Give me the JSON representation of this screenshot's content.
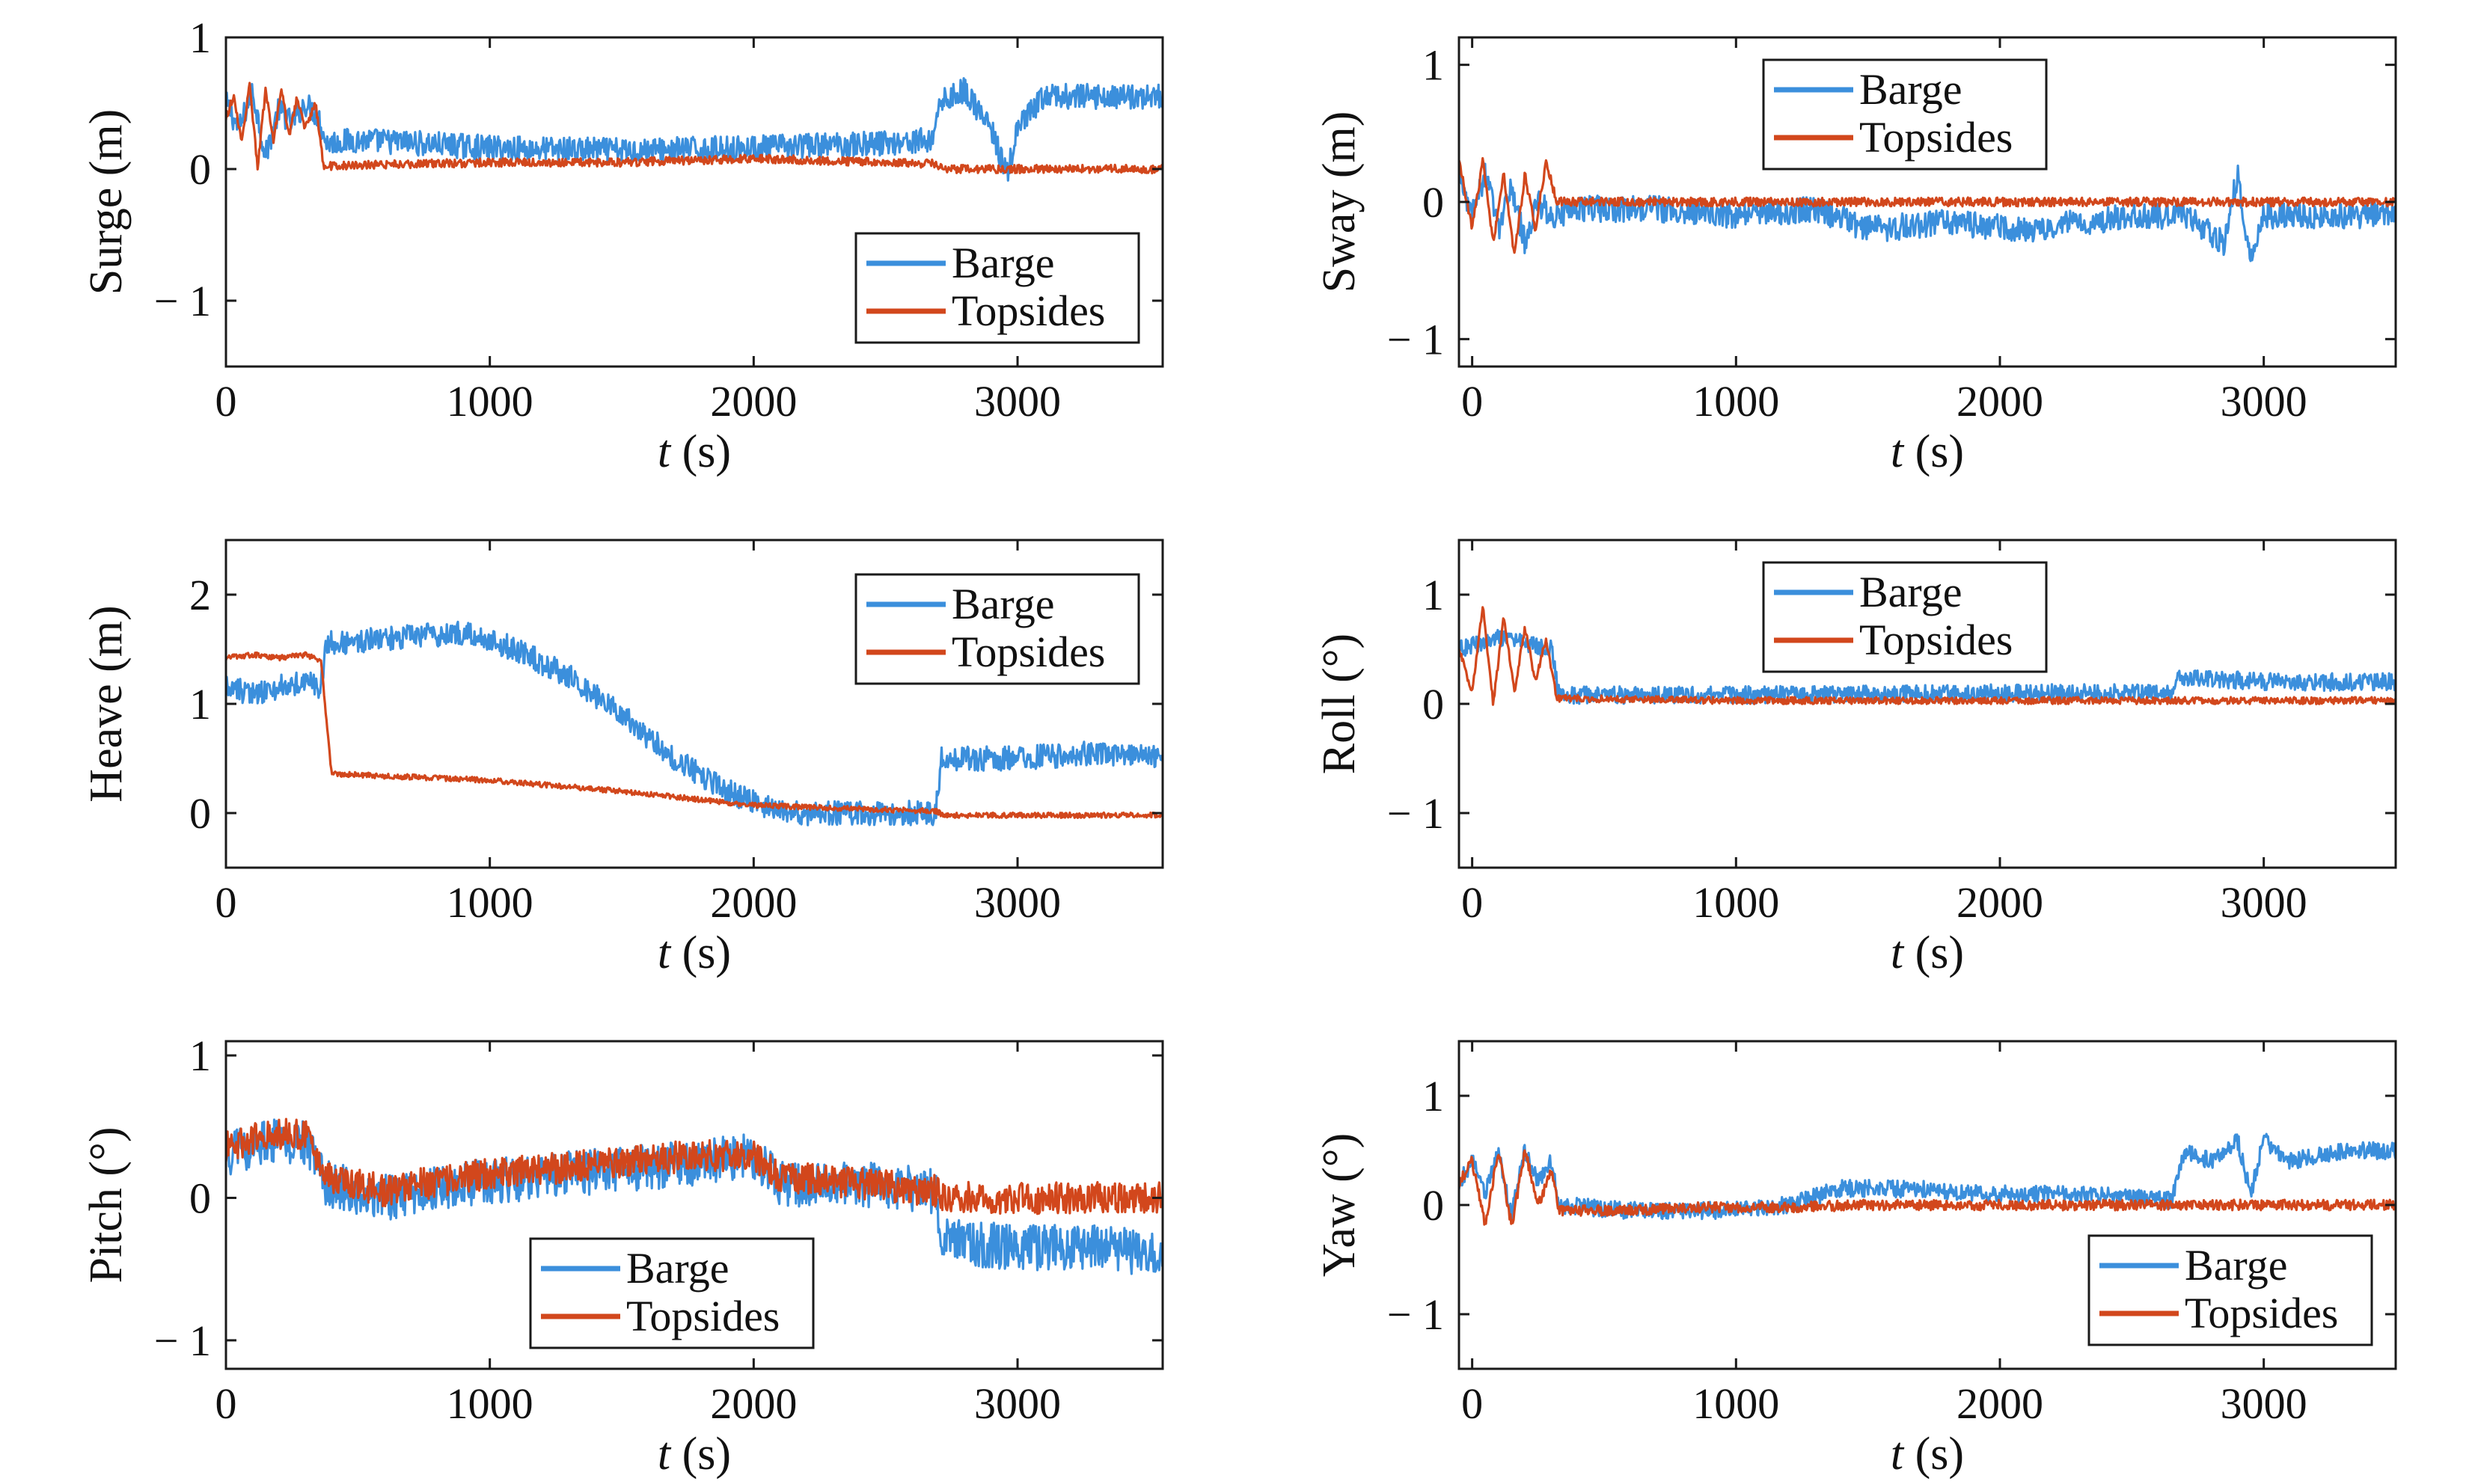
{
  "colors": {
    "barge": "#3b8fdc",
    "topsides": "#d2471c"
  },
  "chart_data": [
    {
      "id": "surge",
      "type": "line",
      "ylabel": "Surge (m)",
      "xlabel_italic": "t",
      "xlabel_unit": " (s)",
      "xlim": [
        0,
        3550
      ],
      "ylim": [
        -1.5,
        1
      ],
      "xticks": [
        0,
        1000,
        2000,
        3000
      ],
      "xtick_labels": [
        "0",
        "1000",
        "2000",
        "3000"
      ],
      "yticks": [
        -1,
        0,
        1
      ],
      "ytick_labels": [
        "− 1",
        "0",
        "1"
      ],
      "legend_position": "bottom-right",
      "series": [
        {
          "name": "Barge",
          "color": "#3b8fdc",
          "noise": 0.06,
          "points": [
            [
              0,
              0.5
            ],
            [
              50,
              0.3
            ],
            [
              100,
              0.6
            ],
            [
              150,
              0.1
            ],
            [
              200,
              0.45
            ],
            [
              250,
              0.35
            ],
            [
              300,
              0.5
            ],
            [
              350,
              0.4
            ],
            [
              380,
              0.2
            ],
            [
              500,
              0.22
            ],
            [
              700,
              0.2
            ],
            [
              1000,
              0.16
            ],
            [
              1500,
              0.14
            ],
            [
              2000,
              0.16
            ],
            [
              2500,
              0.2
            ],
            [
              2680,
              0.22
            ],
            [
              2700,
              0.5
            ],
            [
              2800,
              0.6
            ],
            [
              2900,
              0.3
            ],
            [
              2960,
              -0.05
            ],
            [
              3000,
              0.3
            ],
            [
              3100,
              0.55
            ],
            [
              3300,
              0.55
            ],
            [
              3550,
              0.55
            ]
          ]
        },
        {
          "name": "Topsides",
          "color": "#d2471c",
          "noise": 0.02,
          "points": [
            [
              0,
              0.4
            ],
            [
              30,
              0.55
            ],
            [
              60,
              0.2
            ],
            [
              90,
              0.65
            ],
            [
              120,
              0.0
            ],
            [
              150,
              0.6
            ],
            [
              180,
              0.2
            ],
            [
              210,
              0.6
            ],
            [
              240,
              0.25
            ],
            [
              270,
              0.55
            ],
            [
              300,
              0.3
            ],
            [
              340,
              0.5
            ],
            [
              370,
              0.02
            ],
            [
              500,
              0.03
            ],
            [
              1000,
              0.05
            ],
            [
              1500,
              0.05
            ],
            [
              2000,
              0.08
            ],
            [
              2500,
              0.05
            ],
            [
              2680,
              0.04
            ],
            [
              2720,
              0.0
            ],
            [
              3550,
              0.0
            ]
          ]
        }
      ]
    },
    {
      "id": "sway",
      "type": "line",
      "ylabel": "Sway (m)",
      "xlabel_italic": "t",
      "xlabel_unit": " (s)",
      "xlim": [
        -50,
        3500
      ],
      "ylim": [
        -1.2,
        1.2
      ],
      "xticks": [
        0,
        1000,
        2000,
        3000
      ],
      "xtick_labels": [
        "0",
        "1000",
        "2000",
        "3000"
      ],
      "yticks": [
        -1,
        0,
        1
      ],
      "ytick_labels": [
        "− 1",
        "0",
        "1"
      ],
      "legend_position": "top-center",
      "series": [
        {
          "name": "Barge",
          "color": "#3b8fdc",
          "noise": 0.06,
          "points": [
            [
              -50,
              0.2
            ],
            [
              0,
              -0.1
            ],
            [
              50,
              0.2
            ],
            [
              100,
              -0.2
            ],
            [
              150,
              0.1
            ],
            [
              200,
              -0.3
            ],
            [
              250,
              0.0
            ],
            [
              300,
              -0.1
            ],
            [
              400,
              -0.05
            ],
            [
              700,
              -0.05
            ],
            [
              1000,
              -0.1
            ],
            [
              1300,
              -0.05
            ],
            [
              1500,
              -0.2
            ],
            [
              1800,
              -0.15
            ],
            [
              2100,
              -0.2
            ],
            [
              2500,
              -0.1
            ],
            [
              2700,
              -0.1
            ],
            [
              2850,
              -0.3
            ],
            [
              2900,
              0.2
            ],
            [
              2950,
              -0.4
            ],
            [
              3000,
              -0.1
            ],
            [
              3200,
              -0.1
            ],
            [
              3500,
              -0.1
            ]
          ]
        },
        {
          "name": "Topsides",
          "color": "#d2471c",
          "noise": 0.02,
          "points": [
            [
              -50,
              0.3
            ],
            [
              0,
              -0.2
            ],
            [
              40,
              0.3
            ],
            [
              80,
              -0.3
            ],
            [
              120,
              0.2
            ],
            [
              160,
              -0.4
            ],
            [
              200,
              0.2
            ],
            [
              240,
              -0.2
            ],
            [
              280,
              0.3
            ],
            [
              320,
              0.0
            ],
            [
              1000,
              0.0
            ],
            [
              2000,
              0.0
            ],
            [
              3500,
              0.0
            ]
          ]
        }
      ]
    },
    {
      "id": "heave",
      "type": "line",
      "ylabel": "Heave (m)",
      "xlabel_italic": "t",
      "xlabel_unit": " (s)",
      "xlim": [
        0,
        3550
      ],
      "ylim": [
        -0.5,
        2.5
      ],
      "xticks": [
        0,
        1000,
        2000,
        3000
      ],
      "xtick_labels": [
        "0",
        "1000",
        "2000",
        "3000"
      ],
      "yticks": [
        0,
        1,
        2
      ],
      "ytick_labels": [
        "0",
        "1",
        "2"
      ],
      "legend_position": "top-right",
      "series": [
        {
          "name": "Barge",
          "color": "#3b8fdc",
          "noise": 0.07,
          "points": [
            [
              0,
              1.15
            ],
            [
              100,
              1.1
            ],
            [
              200,
              1.15
            ],
            [
              300,
              1.2
            ],
            [
              360,
              1.15
            ],
            [
              380,
              1.55
            ],
            [
              600,
              1.6
            ],
            [
              900,
              1.65
            ],
            [
              1100,
              1.5
            ],
            [
              1300,
              1.25
            ],
            [
              1500,
              0.9
            ],
            [
              1700,
              0.5
            ],
            [
              1900,
              0.2
            ],
            [
              2100,
              0.0
            ],
            [
              2300,
              0.0
            ],
            [
              2500,
              0.0
            ],
            [
              2690,
              0.0
            ],
            [
              2710,
              0.5
            ],
            [
              3000,
              0.5
            ],
            [
              3300,
              0.55
            ],
            [
              3550,
              0.5
            ]
          ]
        },
        {
          "name": "Topsides",
          "color": "#d2471c",
          "noise": 0.015,
          "points": [
            [
              0,
              1.42
            ],
            [
              100,
              1.45
            ],
            [
              200,
              1.42
            ],
            [
              300,
              1.45
            ],
            [
              360,
              1.4
            ],
            [
              400,
              0.36
            ],
            [
              1000,
              0.3
            ],
            [
              1500,
              0.2
            ],
            [
              2000,
              0.07
            ],
            [
              2500,
              0.03
            ],
            [
              2690,
              0.02
            ],
            [
              2720,
              -0.02
            ],
            [
              3550,
              -0.02
            ]
          ]
        }
      ]
    },
    {
      "id": "roll",
      "type": "line",
      "ylabel": "Roll (°)",
      "xlabel_italic": "t",
      "xlabel_unit": " (s)",
      "xlim": [
        -50,
        3500
      ],
      "ylim": [
        -1.5,
        1.5
      ],
      "xticks": [
        0,
        1000,
        2000,
        3000
      ],
      "xtick_labels": [
        "0",
        "1000",
        "2000",
        "3000"
      ],
      "yticks": [
        -1,
        0,
        1
      ],
      "ytick_labels": [
        "− 1",
        "0",
        "1"
      ],
      "legend_position": "top-center",
      "series": [
        {
          "name": "Barge",
          "color": "#3b8fdc",
          "noise": 0.05,
          "points": [
            [
              -50,
              0.5
            ],
            [
              100,
              0.6
            ],
            [
              300,
              0.5
            ],
            [
              330,
              0.08
            ],
            [
              1000,
              0.08
            ],
            [
              2000,
              0.1
            ],
            [
              2600,
              0.1
            ],
            [
              2660,
              0.1
            ],
            [
              2680,
              0.25
            ],
            [
              3000,
              0.2
            ],
            [
              3500,
              0.2
            ]
          ]
        },
        {
          "name": "Topsides",
          "color": "#d2471c",
          "noise": 0.02,
          "points": [
            [
              -50,
              0.5
            ],
            [
              0,
              0.1
            ],
            [
              40,
              0.9
            ],
            [
              80,
              0.0
            ],
            [
              120,
              0.8
            ],
            [
              160,
              0.1
            ],
            [
              200,
              0.7
            ],
            [
              240,
              0.2
            ],
            [
              280,
              0.6
            ],
            [
              320,
              0.05
            ],
            [
              1000,
              0.03
            ],
            [
              2000,
              0.03
            ],
            [
              3500,
              0.03
            ]
          ]
        }
      ]
    },
    {
      "id": "pitch",
      "type": "line",
      "ylabel": "Pitch (°)",
      "xlabel_italic": "t",
      "xlabel_unit": " (s)",
      "xlim": [
        0,
        3550
      ],
      "ylim": [
        -1.2,
        1.1
      ],
      "xticks": [
        0,
        1000,
        2000,
        3000
      ],
      "xtick_labels": [
        "0",
        "1000",
        "2000",
        "3000"
      ],
      "yticks": [
        -1,
        0,
        1
      ],
      "ytick_labels": [
        "− 1",
        "0",
        "1"
      ],
      "legend_position": "bottom-center",
      "series": [
        {
          "name": "Barge",
          "color": "#3b8fdc",
          "noise": 0.1,
          "points": [
            [
              0,
              0.3
            ],
            [
              150,
              0.4
            ],
            [
              300,
              0.4
            ],
            [
              380,
              0.1
            ],
            [
              600,
              0.0
            ],
            [
              900,
              0.1
            ],
            [
              1200,
              0.15
            ],
            [
              1500,
              0.2
            ],
            [
              1800,
              0.25
            ],
            [
              2000,
              0.3
            ],
            [
              2100,
              0.1
            ],
            [
              2400,
              0.1
            ],
            [
              2690,
              0.05
            ],
            [
              2710,
              -0.3
            ],
            [
              3000,
              -0.35
            ],
            [
              3300,
              -0.35
            ],
            [
              3550,
              -0.4
            ]
          ]
        },
        {
          "name": "Topsides",
          "color": "#d2471c",
          "noise": 0.07,
          "points": [
            [
              0,
              0.35
            ],
            [
              150,
              0.45
            ],
            [
              300,
              0.45
            ],
            [
              380,
              0.15
            ],
            [
              600,
              0.05
            ],
            [
              900,
              0.15
            ],
            [
              1200,
              0.2
            ],
            [
              1500,
              0.25
            ],
            [
              1800,
              0.3
            ],
            [
              2000,
              0.3
            ],
            [
              2100,
              0.15
            ],
            [
              2400,
              0.1
            ],
            [
              2690,
              0.05
            ],
            [
              2710,
              0.0
            ],
            [
              3550,
              0.0
            ]
          ]
        }
      ]
    },
    {
      "id": "yaw",
      "type": "line",
      "ylabel": "Yaw (°)",
      "xlabel_italic": "t",
      "xlabel_unit": " (s)",
      "xlim": [
        -50,
        3500
      ],
      "ylim": [
        -1.5,
        1.5
      ],
      "xticks": [
        0,
        1000,
        2000,
        3000
      ],
      "xtick_labels": [
        "0",
        "1000",
        "2000",
        "3000"
      ],
      "yticks": [
        -1,
        0,
        1
      ],
      "ytick_labels": [
        "− 1",
        "0",
        "1"
      ],
      "legend_position": "bottom-right",
      "series": [
        {
          "name": "Barge",
          "color": "#3b8fdc",
          "noise": 0.05,
          "points": [
            [
              -50,
              0.2
            ],
            [
              0,
              0.4
            ],
            [
              50,
              0.1
            ],
            [
              100,
              0.5
            ],
            [
              150,
              -0.1
            ],
            [
              200,
              0.5
            ],
            [
              250,
              0.2
            ],
            [
              300,
              0.4
            ],
            [
              330,
              0.0
            ],
            [
              600,
              -0.05
            ],
            [
              900,
              -0.05
            ],
            [
              1200,
              0.0
            ],
            [
              1400,
              0.15
            ],
            [
              1700,
              0.15
            ],
            [
              2000,
              0.1
            ],
            [
              2300,
              0.1
            ],
            [
              2600,
              0.05
            ],
            [
              2650,
              0.05
            ],
            [
              2700,
              0.5
            ],
            [
              2800,
              0.4
            ],
            [
              2900,
              0.6
            ],
            [
              2950,
              0.1
            ],
            [
              3000,
              0.6
            ],
            [
              3100,
              0.4
            ],
            [
              3300,
              0.5
            ],
            [
              3500,
              0.5
            ]
          ]
        },
        {
          "name": "Topsides",
          "color": "#d2471c",
          "noise": 0.03,
          "points": [
            [
              -50,
              0.2
            ],
            [
              0,
              0.4
            ],
            [
              50,
              -0.2
            ],
            [
              100,
              0.5
            ],
            [
              150,
              -0.2
            ],
            [
              200,
              0.5
            ],
            [
              250,
              0.0
            ],
            [
              300,
              0.3
            ],
            [
              330,
              -0.05
            ],
            [
              600,
              -0.05
            ],
            [
              900,
              -0.02
            ],
            [
              1200,
              -0.02
            ],
            [
              1500,
              0.0
            ],
            [
              2000,
              0.0
            ],
            [
              3500,
              0.0
            ]
          ]
        }
      ]
    }
  ]
}
